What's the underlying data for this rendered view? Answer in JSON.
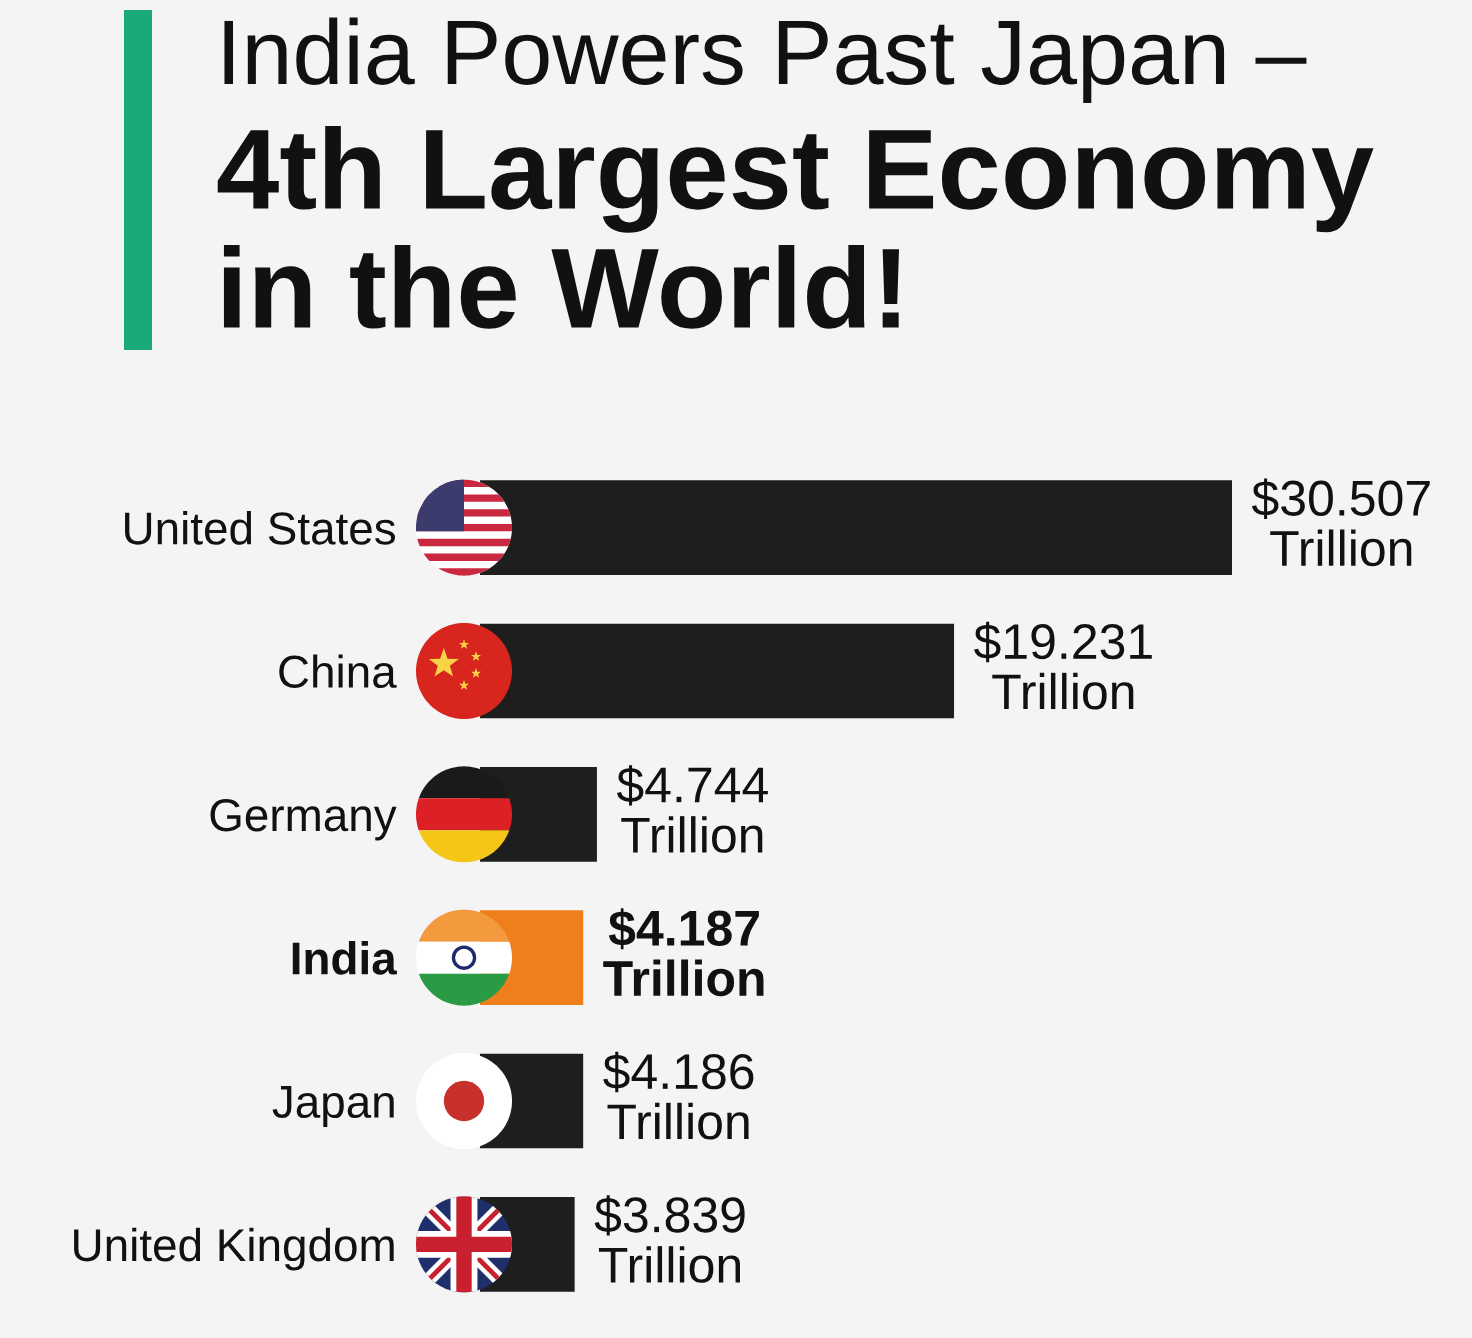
{
  "chart_data": {
    "type": "bar",
    "orientation": "horizontal",
    "title": "India Powers Past Japan –",
    "subtitle": "4th Largest Economy in the World!",
    "categories": [
      "United States",
      "China",
      "Germany",
      "India",
      "Japan",
      "United Kingdom"
    ],
    "values": [
      30.507,
      19.231,
      4.744,
      4.187,
      4.186,
      3.839
    ],
    "colors": [
      "#1e1e1e",
      "#1e1e1e",
      "#1e1e1e",
      "#ef7f1a",
      "#1e1e1e",
      "#1e1e1e"
    ],
    "value_labels": [
      "$30.507\nTrillion",
      "$19.231\nTrillion",
      "$4.744\nTrillion",
      "$4.187\nTrillion",
      "$4.186\nTrillion",
      "$3.839\nTrillion"
    ],
    "tick_labels": "y"
  }
}
